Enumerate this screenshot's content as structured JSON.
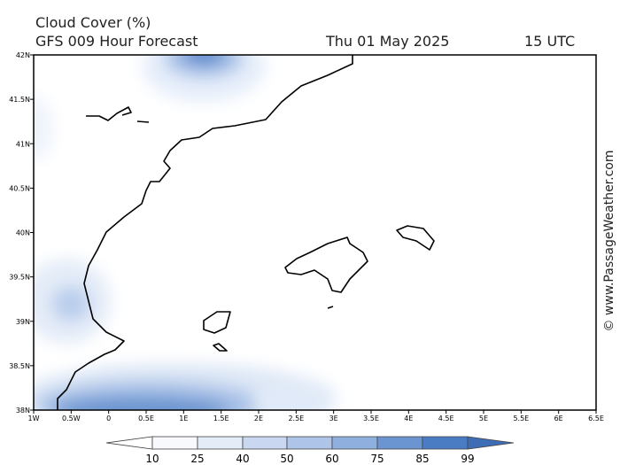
{
  "header": {
    "title": "Cloud Cover (%)",
    "subtitle": "GFS 009 Hour Forecast",
    "date": "Thu 01 May 2025",
    "time": "15 UTC"
  },
  "map": {
    "x_labels": [
      "1W",
      "0.5W",
      "0",
      "0.5E",
      "1E",
      "1.5E",
      "2E",
      "2.5E",
      "3E",
      "3.5E",
      "4E",
      "4.5E",
      "5E",
      "5.5E",
      "6E",
      "6.5E"
    ],
    "y_labels": [
      "38N",
      "38.5N",
      "39N",
      "39.5N",
      "40N",
      "40.5N",
      "41N",
      "41.5N",
      "42N"
    ]
  },
  "colorbar": {
    "ticks": [
      10,
      25,
      40,
      50,
      60,
      75,
      85,
      99
    ]
  },
  "credit": "© www.PassageWeather.com"
}
